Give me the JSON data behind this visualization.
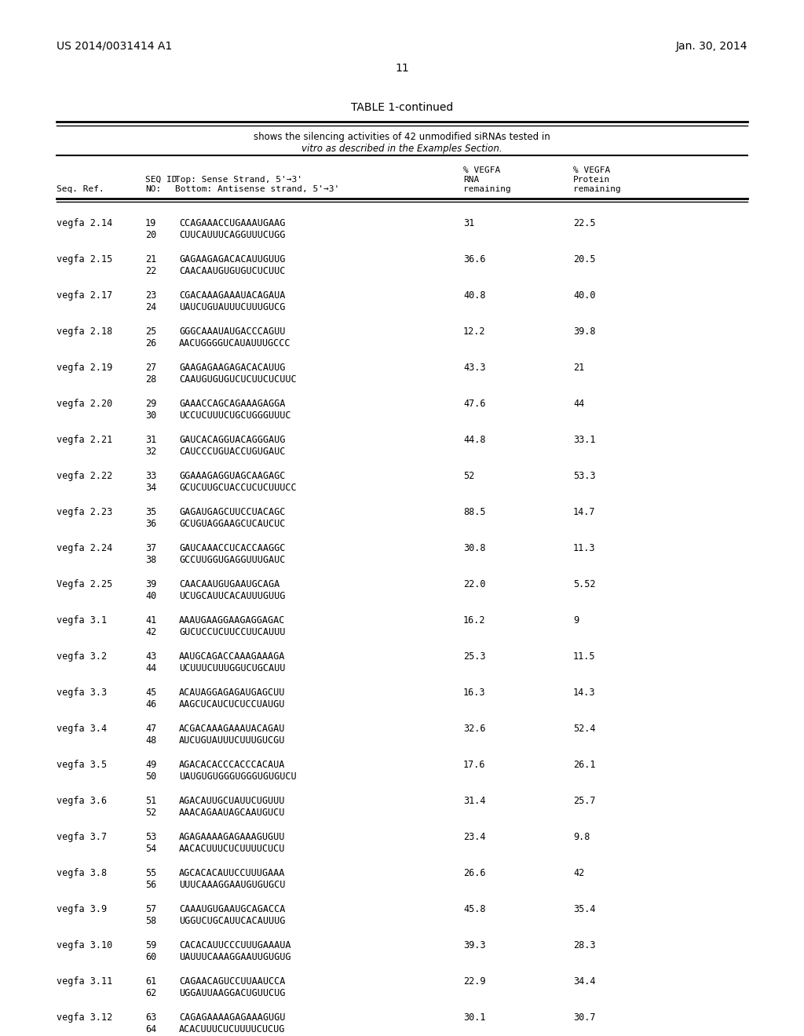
{
  "page_left": "US 2014/0031414 A1",
  "page_right": "Jan. 30, 2014",
  "page_number": "11",
  "table_title": "TABLE 1-continued",
  "table_subtitle1": "shows the silencing activities of 42 unmodified siRNAs tested in",
  "table_subtitle2": "vitro as described in the Examples Section.",
  "rows": [
    {
      "ref": "vegfa 2.14",
      "seq1": "19",
      "strand1": "CCAGAAACCUGAAAUGAAG",
      "seq2": "20",
      "strand2": "CUUCAUUUCAGGUUUCUGG",
      "rna": "31",
      "protein": "22.5"
    },
    {
      "ref": "vegfa 2.15",
      "seq1": "21",
      "strand1": "GAGAAGAGACACAUUGUUG",
      "seq2": "22",
      "strand2": "CAACAAUGUGUGUCUCUUC",
      "rna": "36.6",
      "protein": "20.5"
    },
    {
      "ref": "vegfa 2.17",
      "seq1": "23",
      "strand1": "CGACAAAGAAAUACAGAUA",
      "seq2": "24",
      "strand2": "UAUCUGUAUUUCUUUGUCG",
      "rna": "40.8",
      "protein": "40.0"
    },
    {
      "ref": "vegfa 2.18",
      "seq1": "25",
      "strand1": "GGGCAAAUAUGACCCAGUU",
      "seq2": "26",
      "strand2": "AACUGGGGUCAUAUUUGCCC",
      "rna": "12.2",
      "protein": "39.8"
    },
    {
      "ref": "vegfa 2.19",
      "seq1": "27",
      "strand1": "GAAGAGAAGAGACACAUUG",
      "seq2": "28",
      "strand2": "CAAUGUGUGUCUCUUCUCUUC",
      "rna": "43.3",
      "protein": "21"
    },
    {
      "ref": "vegfa 2.20",
      "seq1": "29",
      "strand1": "GAAACCAGCAGAAAGAGGA",
      "seq2": "30",
      "strand2": "UCCUCUUUCUGCUGGGUUUC",
      "rna": "47.6",
      "protein": "44"
    },
    {
      "ref": "vegfa 2.21",
      "seq1": "31",
      "strand1": "GAUCACAGGUACAGGGAUG",
      "seq2": "32",
      "strand2": "CAUCCCUGUACCUGUGAUC",
      "rna": "44.8",
      "protein": "33.1"
    },
    {
      "ref": "vegfa 2.22",
      "seq1": "33",
      "strand1": "GGAAAGAGGUAGCAAGAGC",
      "seq2": "34",
      "strand2": "GCUCUUGCUACCUCUCUUUCC",
      "rna": "52",
      "protein": "53.3"
    },
    {
      "ref": "vegfa 2.23",
      "seq1": "35",
      "strand1": "GAGAUGAGCUUCCUACAGC",
      "seq2": "36",
      "strand2": "GCUGUAGGAAGCUCAUCUC",
      "rna": "88.5",
      "protein": "14.7"
    },
    {
      "ref": "vegfa 2.24",
      "seq1": "37",
      "strand1": "GAUCAAACCUCACCAAGGC",
      "seq2": "38",
      "strand2": "GCCUUGGUGAGGUUUGAUC",
      "rna": "30.8",
      "protein": "11.3"
    },
    {
      "ref": "Vegfa 2.25",
      "seq1": "39",
      "strand1": "CAACAAUGUGAAUGCAGA",
      "seq2": "40",
      "strand2": "UCUGCAUUCACAUUUGUUG",
      "rna": "22.0",
      "protein": "5.52"
    },
    {
      "ref": "vegfa 3.1",
      "seq1": "41",
      "strand1": "AAAUGAAGGAAGAGGAGAC",
      "seq2": "42",
      "strand2": "GUCUCCUCUUCCUUCAUUU",
      "rna": "16.2",
      "protein": "9"
    },
    {
      "ref": "vegfa 3.2",
      "seq1": "43",
      "strand1": "AAUGCAGACCAAAGAAAGA",
      "seq2": "44",
      "strand2": "UCUUUCUUUGGUCUGCAUU",
      "rna": "25.3",
      "protein": "11.5"
    },
    {
      "ref": "vegfa 3.3",
      "seq1": "45",
      "strand1": "ACAUAGGAGAGAUGAGCUU",
      "seq2": "46",
      "strand2": "AAGCUCAUCUCUCCUAUGU",
      "rna": "16.3",
      "protein": "14.3"
    },
    {
      "ref": "vegfa 3.4",
      "seq1": "47",
      "strand1": "ACGACAAAGAAAUACAGAU",
      "seq2": "48",
      "strand2": "AUCUGUAUUUCUUUGUCGU",
      "rna": "32.6",
      "protein": "52.4"
    },
    {
      "ref": "vegfa 3.5",
      "seq1": "49",
      "strand1": "AGACACACCCACCCACAUA",
      "seq2": "50",
      "strand2": "UAUGUGUGGGUGGGUGUGUCU",
      "rna": "17.6",
      "protein": "26.1"
    },
    {
      "ref": "vegfa 3.6",
      "seq1": "51",
      "strand1": "AGACAUUGCUAUUCUGUUU",
      "seq2": "52",
      "strand2": "AAACAGAAUAGCAAUGUCU",
      "rna": "31.4",
      "protein": "25.7"
    },
    {
      "ref": "vegfa 3.7",
      "seq1": "53",
      "strand1": "AGAGAAAAGAGAAAGUGUU",
      "seq2": "54",
      "strand2": "AACACUUUCUCUUUUCUCU",
      "rna": "23.4",
      "protein": "9.8"
    },
    {
      "ref": "vegfa 3.8",
      "seq1": "55",
      "strand1": "AGCACACAUUCCUUUGAAA",
      "seq2": "56",
      "strand2": "UUUCAAAGGAAUGUGUGCU",
      "rna": "26.6",
      "protein": "42"
    },
    {
      "ref": "vegfa 3.9",
      "seq1": "57",
      "strand1": "CAAAUGUGAAUGCAGACCA",
      "seq2": "58",
      "strand2": "UGGUCUGCAUUCACAUUUG",
      "rna": "45.8",
      "protein": "35.4"
    },
    {
      "ref": "vegfa 3.10",
      "seq1": "59",
      "strand1": "CACACAUUCCCUUUGAAAUA",
      "seq2": "60",
      "strand2": "UAUUUCAAAGGAAUUGUGUG",
      "rna": "39.3",
      "protein": "28.3"
    },
    {
      "ref": "vegfa 3.11",
      "seq1": "61",
      "strand1": "CAGAACAGUCCUUAAUCCA",
      "seq2": "62",
      "strand2": "UGGAUUAAGGACUGUUCUG",
      "rna": "22.9",
      "protein": "34.4"
    },
    {
      "ref": "vegfa 3.12",
      "seq1": "63",
      "strand1": "CAGAGAAAAGAGAAAGUGU",
      "seq2": "64",
      "strand2": "ACACUUUCUCUUUUCUCUG",
      "rna": "30.1",
      "protein": "30.7"
    }
  ],
  "bg_color": "#ffffff",
  "text_color": "#000000"
}
